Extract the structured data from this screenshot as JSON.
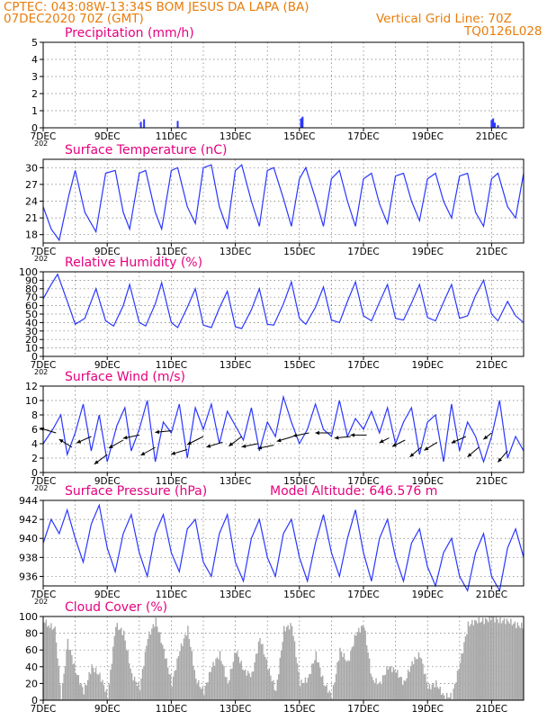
{
  "header": {
    "line1": "CPTEC:   043:08W-13:34S   BOM JESUS DA LAPA (BA)",
    "line2": "07DEC2020 70Z (GMT)",
    "grid_note": "Vertical Grid Line: 70Z",
    "code": "TQ0126L028"
  },
  "colors": {
    "header": "#e87d0c",
    "title": "#e6007e",
    "series": "#2a36ff",
    "cloud": "#a8a8a8",
    "grid": "#777777"
  },
  "x_axis": {
    "tick_labels": [
      "7DEC",
      "9DEC",
      "11DEC",
      "13DEC",
      "15DEC",
      "17DEC",
      "19DEC",
      "21DEC"
    ],
    "tick_days": [
      7,
      9,
      11,
      13,
      15,
      17,
      19,
      21
    ],
    "range_days": [
      7,
      22
    ],
    "year_stub": "202"
  },
  "chart_data": [
    {
      "type": "bar",
      "title": "Precipitation (mm/h)",
      "extra_label": "",
      "ylim": [
        0,
        5
      ],
      "yticks": [
        0,
        1,
        2,
        3,
        4,
        5
      ],
      "grid": true,
      "x": [
        10.05,
        10.15,
        11.2,
        15.05,
        15.1,
        21.0,
        21.05,
        21.1,
        21.2
      ],
      "values": [
        0.35,
        0.5,
        0.4,
        0.55,
        0.65,
        0.45,
        0.55,
        0.3,
        0.15
      ]
    },
    {
      "type": "line",
      "title": "Surface Temperature (nC)",
      "extra_label": "",
      "ylim": [
        16.5,
        31.5
      ],
      "yticks": [
        18,
        21,
        24,
        27,
        30
      ],
      "grid": true,
      "x": [
        7.0,
        7.25,
        7.5,
        7.8,
        8.0,
        8.3,
        8.65,
        8.95,
        9.25,
        9.5,
        9.7,
        10.0,
        10.2,
        10.5,
        10.7,
        11.0,
        11.2,
        11.5,
        11.75,
        12.0,
        12.25,
        12.5,
        12.75,
        13.0,
        13.2,
        13.5,
        13.75,
        14.0,
        14.2,
        14.5,
        14.75,
        15.0,
        15.2,
        15.5,
        15.75,
        16.0,
        16.25,
        16.5,
        16.75,
        17.0,
        17.25,
        17.5,
        17.75,
        18.0,
        18.25,
        18.5,
        18.75,
        19.0,
        19.25,
        19.5,
        19.75,
        20.0,
        20.25,
        20.5,
        20.75,
        21.0,
        21.2,
        21.5,
        21.75,
        22.0
      ],
      "values": [
        23,
        19,
        17,
        25,
        29.5,
        22,
        18.5,
        29,
        29.5,
        22,
        19,
        29,
        29.5,
        22,
        19,
        29.5,
        30,
        23,
        20,
        30,
        30.5,
        23,
        19,
        29.5,
        30.5,
        24,
        19.5,
        29.5,
        30,
        24.5,
        19.5,
        28,
        30,
        24.5,
        19.5,
        28,
        29.5,
        24,
        19.5,
        28,
        29,
        23.5,
        20,
        28.5,
        29,
        24,
        20.5,
        28,
        29,
        24,
        21,
        28.5,
        29,
        22,
        19.5,
        28,
        29,
        23,
        21,
        29
      ]
    },
    {
      "type": "line",
      "title": "Relative Humidity (%)",
      "extra_label": "",
      "ylim": [
        0,
        100
      ],
      "yticks": [
        0,
        10,
        20,
        30,
        40,
        50,
        60,
        70,
        80,
        90,
        100
      ],
      "grid": true,
      "x": [
        7.0,
        7.25,
        7.45,
        7.8,
        8.0,
        8.3,
        8.65,
        8.95,
        9.2,
        9.5,
        9.7,
        10.0,
        10.2,
        10.5,
        10.7,
        11.0,
        11.2,
        11.5,
        11.75,
        12.0,
        12.25,
        12.5,
        12.75,
        13.0,
        13.2,
        13.5,
        13.75,
        14.0,
        14.2,
        14.5,
        14.75,
        15.0,
        15.2,
        15.5,
        15.75,
        16.0,
        16.25,
        16.5,
        16.75,
        17.0,
        17.25,
        17.5,
        17.75,
        18.0,
        18.25,
        18.5,
        18.75,
        19.0,
        19.25,
        19.5,
        19.75,
        20.0,
        20.25,
        20.5,
        20.75,
        21.0,
        21.2,
        21.5,
        21.75,
        22.0
      ],
      "values": [
        68,
        85,
        97,
        60,
        38,
        45,
        80,
        42,
        36,
        60,
        85,
        40,
        36,
        62,
        87,
        40,
        34,
        58,
        80,
        37,
        34,
        57,
        77,
        35,
        33,
        55,
        80,
        38,
        37,
        62,
        88,
        45,
        38,
        58,
        82,
        43,
        40,
        65,
        88,
        48,
        42,
        64,
        85,
        45,
        43,
        63,
        85,
        46,
        42,
        64,
        85,
        45,
        48,
        72,
        90,
        50,
        42,
        65,
        48,
        40
      ]
    },
    {
      "type": "line",
      "title": "Surface Wind (m/s)",
      "extra_label": "",
      "ylim": [
        0,
        12
      ],
      "yticks": [
        0,
        2,
        4,
        6,
        8,
        10,
        12
      ],
      "grid": true,
      "x": [
        7.0,
        7.3,
        7.55,
        7.75,
        8.0,
        8.25,
        8.5,
        8.75,
        9.0,
        9.3,
        9.55,
        9.75,
        10.0,
        10.25,
        10.5,
        10.75,
        11.0,
        11.25,
        11.5,
        11.75,
        12.0,
        12.25,
        12.5,
        12.75,
        13.0,
        13.25,
        13.5,
        13.75,
        14.0,
        14.25,
        14.5,
        14.75,
        15.0,
        15.25,
        15.5,
        15.75,
        16.0,
        16.25,
        16.5,
        16.75,
        17.0,
        17.25,
        17.5,
        17.75,
        18.0,
        18.25,
        18.5,
        18.75,
        19.0,
        19.25,
        19.5,
        19.75,
        20.0,
        20.25,
        20.5,
        20.75,
        21.0,
        21.25,
        21.5,
        21.75,
        22.0
      ],
      "values": [
        4,
        6,
        8,
        2.5,
        5.5,
        9.5,
        3,
        8,
        1.5,
        6.5,
        9,
        3,
        6,
        10,
        1.5,
        7,
        5.5,
        9.5,
        2,
        9,
        6,
        9.5,
        4,
        8.5,
        6.5,
        4.5,
        9,
        3,
        7,
        5,
        10.5,
        7,
        4,
        6,
        9.5,
        6,
        5,
        10,
        5,
        7.5,
        6,
        8.5,
        5.5,
        9,
        4,
        7,
        9,
        2.5,
        7,
        8,
        1.5,
        9.5,
        3,
        7,
        5,
        1.5,
        5,
        10,
        2,
        5,
        3
      ]
    },
    {
      "type": "line",
      "title": "Surface Pressure (hPa)",
      "extra_label": "Model Altitude: 646.576 m",
      "ylim": [
        935,
        944
      ],
      "yticks": [
        936,
        938,
        940,
        942,
        944
      ],
      "grid": true,
      "x": [
        7.0,
        7.25,
        7.5,
        7.75,
        8.0,
        8.25,
        8.5,
        8.75,
        9.0,
        9.25,
        9.5,
        9.75,
        10.0,
        10.25,
        10.5,
        10.75,
        11.0,
        11.25,
        11.5,
        11.75,
        12.0,
        12.25,
        12.5,
        12.75,
        13.0,
        13.25,
        13.5,
        13.75,
        14.0,
        14.25,
        14.5,
        14.75,
        15.0,
        15.25,
        15.5,
        15.75,
        16.0,
        16.25,
        16.5,
        16.75,
        17.0,
        17.25,
        17.5,
        17.75,
        18.0,
        18.25,
        18.5,
        18.75,
        19.0,
        19.25,
        19.5,
        19.75,
        20.0,
        20.25,
        20.5,
        20.75,
        21.0,
        21.25,
        21.5,
        21.75,
        22.0
      ],
      "values": [
        939.5,
        942,
        940.5,
        943,
        940,
        937.5,
        941.5,
        943.5,
        939,
        936.5,
        940.5,
        942.5,
        938.5,
        936,
        940.5,
        942.5,
        938.5,
        936.5,
        941,
        942,
        937.5,
        936,
        940.5,
        942.5,
        937.5,
        935.5,
        940,
        942,
        938,
        936,
        940.5,
        942,
        938,
        935.5,
        939.5,
        942.5,
        938.5,
        936,
        940,
        943,
        938.5,
        935.5,
        940,
        942,
        938,
        935.5,
        939.5,
        941,
        937,
        935,
        938.5,
        940,
        936,
        934.5,
        938.5,
        940.5,
        936,
        934.5,
        939,
        941,
        938
      ]
    },
    {
      "type": "area",
      "title": "Cloud Cover (%)",
      "extra_label": "",
      "ylim": [
        0,
        100
      ],
      "yticks": [
        0,
        20,
        40,
        60,
        80,
        100
      ],
      "grid": true,
      "x": [
        7.0,
        7.15,
        7.35,
        7.55,
        7.75,
        8.0,
        8.25,
        8.5,
        8.75,
        9.0,
        9.25,
        9.5,
        9.75,
        10.0,
        10.25,
        10.5,
        10.75,
        11.0,
        11.25,
        11.5,
        11.75,
        12.0,
        12.25,
        12.5,
        12.75,
        13.0,
        13.25,
        13.5,
        13.75,
        14.0,
        14.25,
        14.5,
        14.75,
        15.0,
        15.25,
        15.5,
        15.75,
        16.0,
        16.25,
        16.5,
        16.75,
        17.0,
        17.25,
        17.5,
        17.75,
        18.0,
        18.25,
        18.5,
        18.75,
        19.0,
        19.25,
        19.5,
        19.75,
        20.0,
        20.25,
        20.5,
        20.75,
        21.0,
        21.25,
        21.5,
        21.75,
        22.0
      ],
      "values": [
        95,
        90,
        85,
        5,
        70,
        35,
        10,
        40,
        30,
        5,
        90,
        80,
        30,
        15,
        75,
        95,
        60,
        20,
        60,
        85,
        25,
        10,
        40,
        55,
        20,
        60,
        35,
        30,
        75,
        40,
        10,
        85,
        90,
        20,
        25,
        55,
        20,
        5,
        60,
        45,
        80,
        90,
        25,
        20,
        40,
        35,
        20,
        45,
        55,
        15,
        20,
        5,
        5,
        45,
        90,
        95,
        95,
        98,
        95,
        95,
        90,
        88
      ]
    }
  ]
}
